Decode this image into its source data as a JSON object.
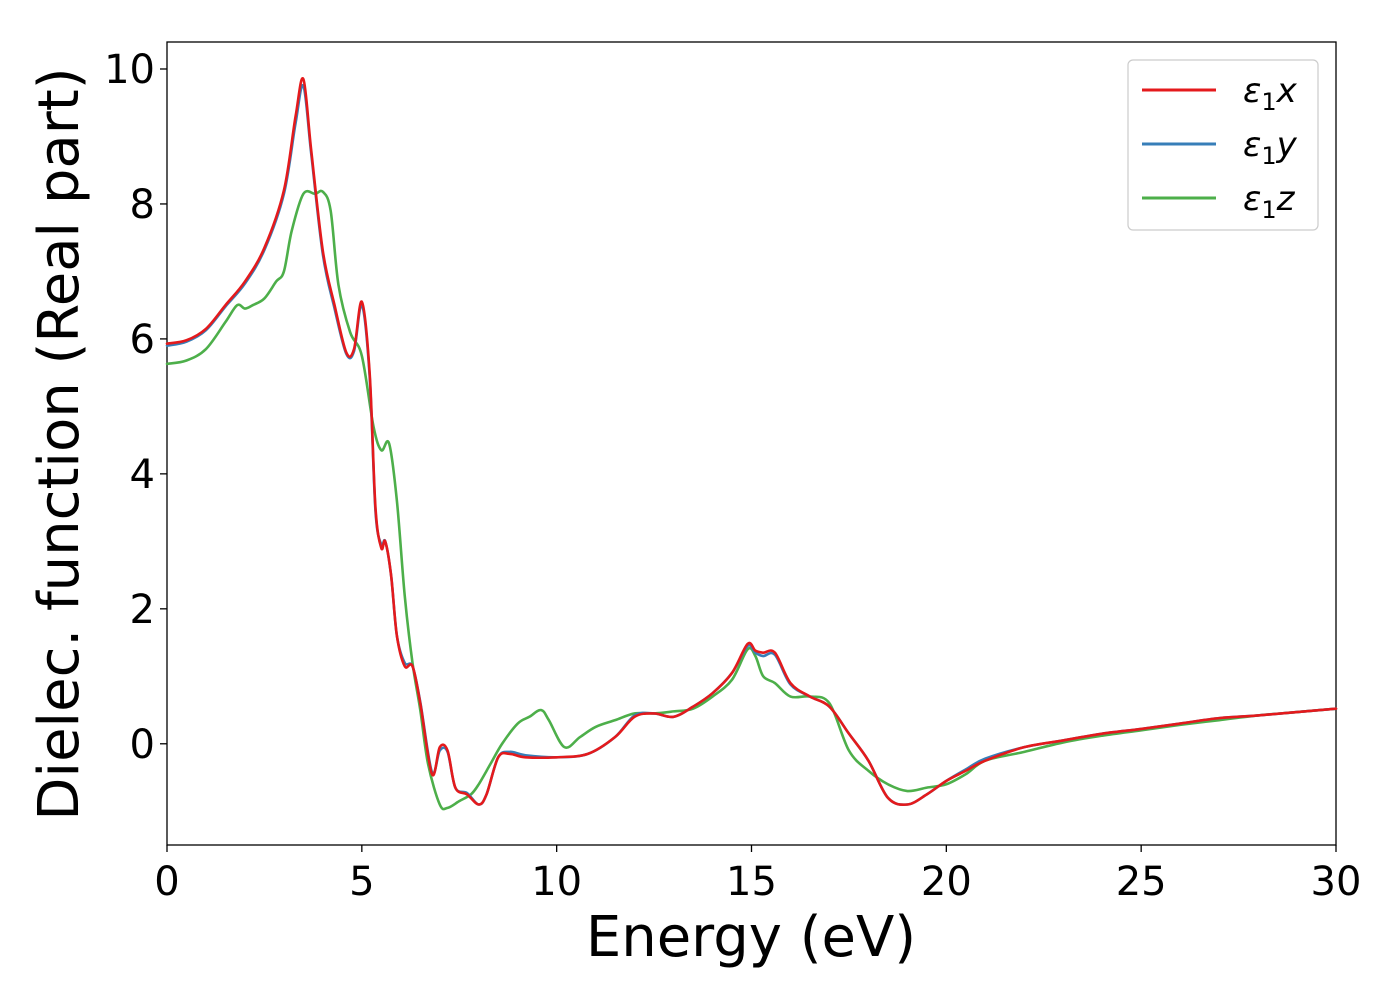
{
  "chart_data": {
    "type": "line",
    "title": "",
    "xlabel": "Energy (eV)",
    "ylabel": "Dielec. function (Real part)",
    "xlim": [
      0,
      30
    ],
    "ylim": [
      -1.5,
      10.4
    ],
    "xticks": [
      0,
      5,
      10,
      15,
      20,
      25,
      30
    ],
    "yticks": [
      0,
      2,
      4,
      6,
      8,
      10
    ],
    "xtick_labels": [
      "0",
      "5",
      "10",
      "15",
      "20",
      "25",
      "30"
    ],
    "ytick_labels": [
      "0",
      "2",
      "4",
      "6",
      "8",
      "10"
    ],
    "grid": false,
    "legend_position": "top-right",
    "series": [
      {
        "name": "ε1x",
        "legend_main": "ε",
        "legend_sub": "1",
        "legend_var": "x",
        "color": "#e41a1c",
        "x": [
          0,
          0.5,
          1.0,
          1.5,
          2.0,
          2.5,
          3.0,
          3.3,
          3.5,
          3.7,
          4.0,
          4.3,
          4.6,
          4.8,
          5.0,
          5.2,
          5.35,
          5.5,
          5.6,
          5.75,
          5.9,
          6.1,
          6.3,
          6.5,
          6.8,
          7.0,
          7.2,
          7.4,
          7.7,
          8.0,
          8.2,
          8.5,
          8.8,
          9.2,
          10.0,
          10.8,
          11.5,
          12.0,
          12.5,
          13.0,
          13.5,
          14.0,
          14.5,
          14.9,
          15.1,
          15.3,
          15.6,
          16.0,
          16.5,
          17.0,
          17.5,
          18.0,
          18.5,
          19.0,
          19.5,
          20.0,
          20.5,
          21.0,
          22.0,
          23.0,
          24.0,
          25.0,
          26.0,
          27.0,
          28.0,
          29.0,
          30.0
        ],
        "y": [
          5.93,
          5.98,
          6.15,
          6.5,
          6.85,
          7.35,
          8.2,
          9.3,
          9.85,
          8.8,
          7.3,
          6.5,
          5.8,
          5.85,
          6.55,
          5.5,
          3.5,
          2.9,
          3.0,
          2.5,
          1.6,
          1.15,
          1.15,
          0.6,
          -0.45,
          -0.05,
          -0.1,
          -0.65,
          -0.75,
          -0.9,
          -0.75,
          -0.2,
          -0.15,
          -0.2,
          -0.2,
          -0.15,
          0.1,
          0.4,
          0.45,
          0.4,
          0.55,
          0.75,
          1.05,
          1.48,
          1.38,
          1.35,
          1.35,
          0.9,
          0.7,
          0.55,
          0.15,
          -0.25,
          -0.8,
          -0.9,
          -0.75,
          -0.55,
          -0.4,
          -0.25,
          -0.05,
          0.05,
          0.15,
          0.22,
          0.3,
          0.38,
          0.42,
          0.47,
          0.52
        ]
      },
      {
        "name": "ε1y",
        "legend_main": "ε",
        "legend_sub": "1",
        "legend_var": "y",
        "color": "#377eb8",
        "x": [
          0,
          0.5,
          1.0,
          1.5,
          2.0,
          2.5,
          3.0,
          3.3,
          3.5,
          3.7,
          4.0,
          4.3,
          4.6,
          4.8,
          5.0,
          5.2,
          5.35,
          5.5,
          5.6,
          5.75,
          5.9,
          6.1,
          6.3,
          6.5,
          6.8,
          7.0,
          7.2,
          7.4,
          7.7,
          8.0,
          8.2,
          8.5,
          8.8,
          9.2,
          10.0,
          10.8,
          11.5,
          12.0,
          12.5,
          13.0,
          13.5,
          14.0,
          14.5,
          14.9,
          15.1,
          15.3,
          15.6,
          16.0,
          16.5,
          17.0,
          17.5,
          18.0,
          18.5,
          19.0,
          19.5,
          20.0,
          20.5,
          21.0,
          22.0,
          23.0,
          24.0,
          25.0,
          26.0,
          27.0,
          28.0,
          29.0,
          30.0
        ],
        "y": [
          5.9,
          5.96,
          6.13,
          6.48,
          6.82,
          7.32,
          8.15,
          9.2,
          9.75,
          8.75,
          7.25,
          6.45,
          5.78,
          5.82,
          6.5,
          5.45,
          3.45,
          2.95,
          3.0,
          2.5,
          1.6,
          1.2,
          1.15,
          0.62,
          -0.42,
          -0.1,
          -0.12,
          -0.65,
          -0.73,
          -0.9,
          -0.75,
          -0.2,
          -0.12,
          -0.17,
          -0.2,
          -0.15,
          0.1,
          0.42,
          0.45,
          0.4,
          0.55,
          0.75,
          1.05,
          1.45,
          1.35,
          1.3,
          1.32,
          0.88,
          0.7,
          0.55,
          0.15,
          -0.25,
          -0.8,
          -0.9,
          -0.75,
          -0.55,
          -0.38,
          -0.22,
          -0.05,
          0.05,
          0.15,
          0.22,
          0.3,
          0.38,
          0.42,
          0.47,
          0.52
        ]
      },
      {
        "name": "ε1z",
        "legend_main": "ε",
        "legend_sub": "1",
        "legend_var": "z",
        "color": "#4daf4a",
        "x": [
          0,
          0.5,
          1.0,
          1.5,
          1.8,
          2.0,
          2.2,
          2.5,
          2.8,
          3.0,
          3.2,
          3.5,
          3.8,
          4.0,
          4.2,
          4.4,
          4.7,
          5.0,
          5.3,
          5.5,
          5.7,
          5.9,
          6.1,
          6.3,
          6.5,
          6.7,
          7.0,
          7.2,
          7.5,
          7.8,
          8.0,
          8.3,
          8.6,
          9.0,
          9.3,
          9.6,
          9.8,
          10.2,
          10.6,
          11.0,
          11.5,
          12.0,
          12.5,
          13.0,
          13.5,
          14.0,
          14.5,
          14.9,
          15.1,
          15.3,
          15.6,
          16.0,
          16.5,
          17.0,
          17.5,
          18.0,
          18.5,
          19.0,
          19.5,
          20.0,
          20.5,
          21.0,
          22.0,
          23.0,
          24.0,
          25.0,
          26.0,
          27.0,
          28.0,
          29.0,
          30.0
        ],
        "y": [
          5.63,
          5.68,
          5.85,
          6.25,
          6.5,
          6.45,
          6.5,
          6.6,
          6.85,
          7.0,
          7.6,
          8.15,
          8.15,
          8.18,
          7.9,
          6.8,
          6.1,
          5.75,
          4.7,
          4.35,
          4.45,
          3.6,
          2.2,
          1.2,
          0.5,
          -0.3,
          -0.9,
          -0.95,
          -0.85,
          -0.75,
          -0.6,
          -0.3,
          0.0,
          0.3,
          0.4,
          0.5,
          0.35,
          -0.05,
          0.1,
          0.25,
          0.35,
          0.45,
          0.45,
          0.48,
          0.52,
          0.7,
          0.95,
          1.4,
          1.3,
          1.0,
          0.9,
          0.7,
          0.7,
          0.6,
          -0.1,
          -0.4,
          -0.6,
          -0.7,
          -0.65,
          -0.6,
          -0.45,
          -0.25,
          -0.12,
          0.02,
          0.12,
          0.2,
          0.28,
          0.35,
          0.42,
          0.47,
          0.52
        ]
      }
    ]
  }
}
